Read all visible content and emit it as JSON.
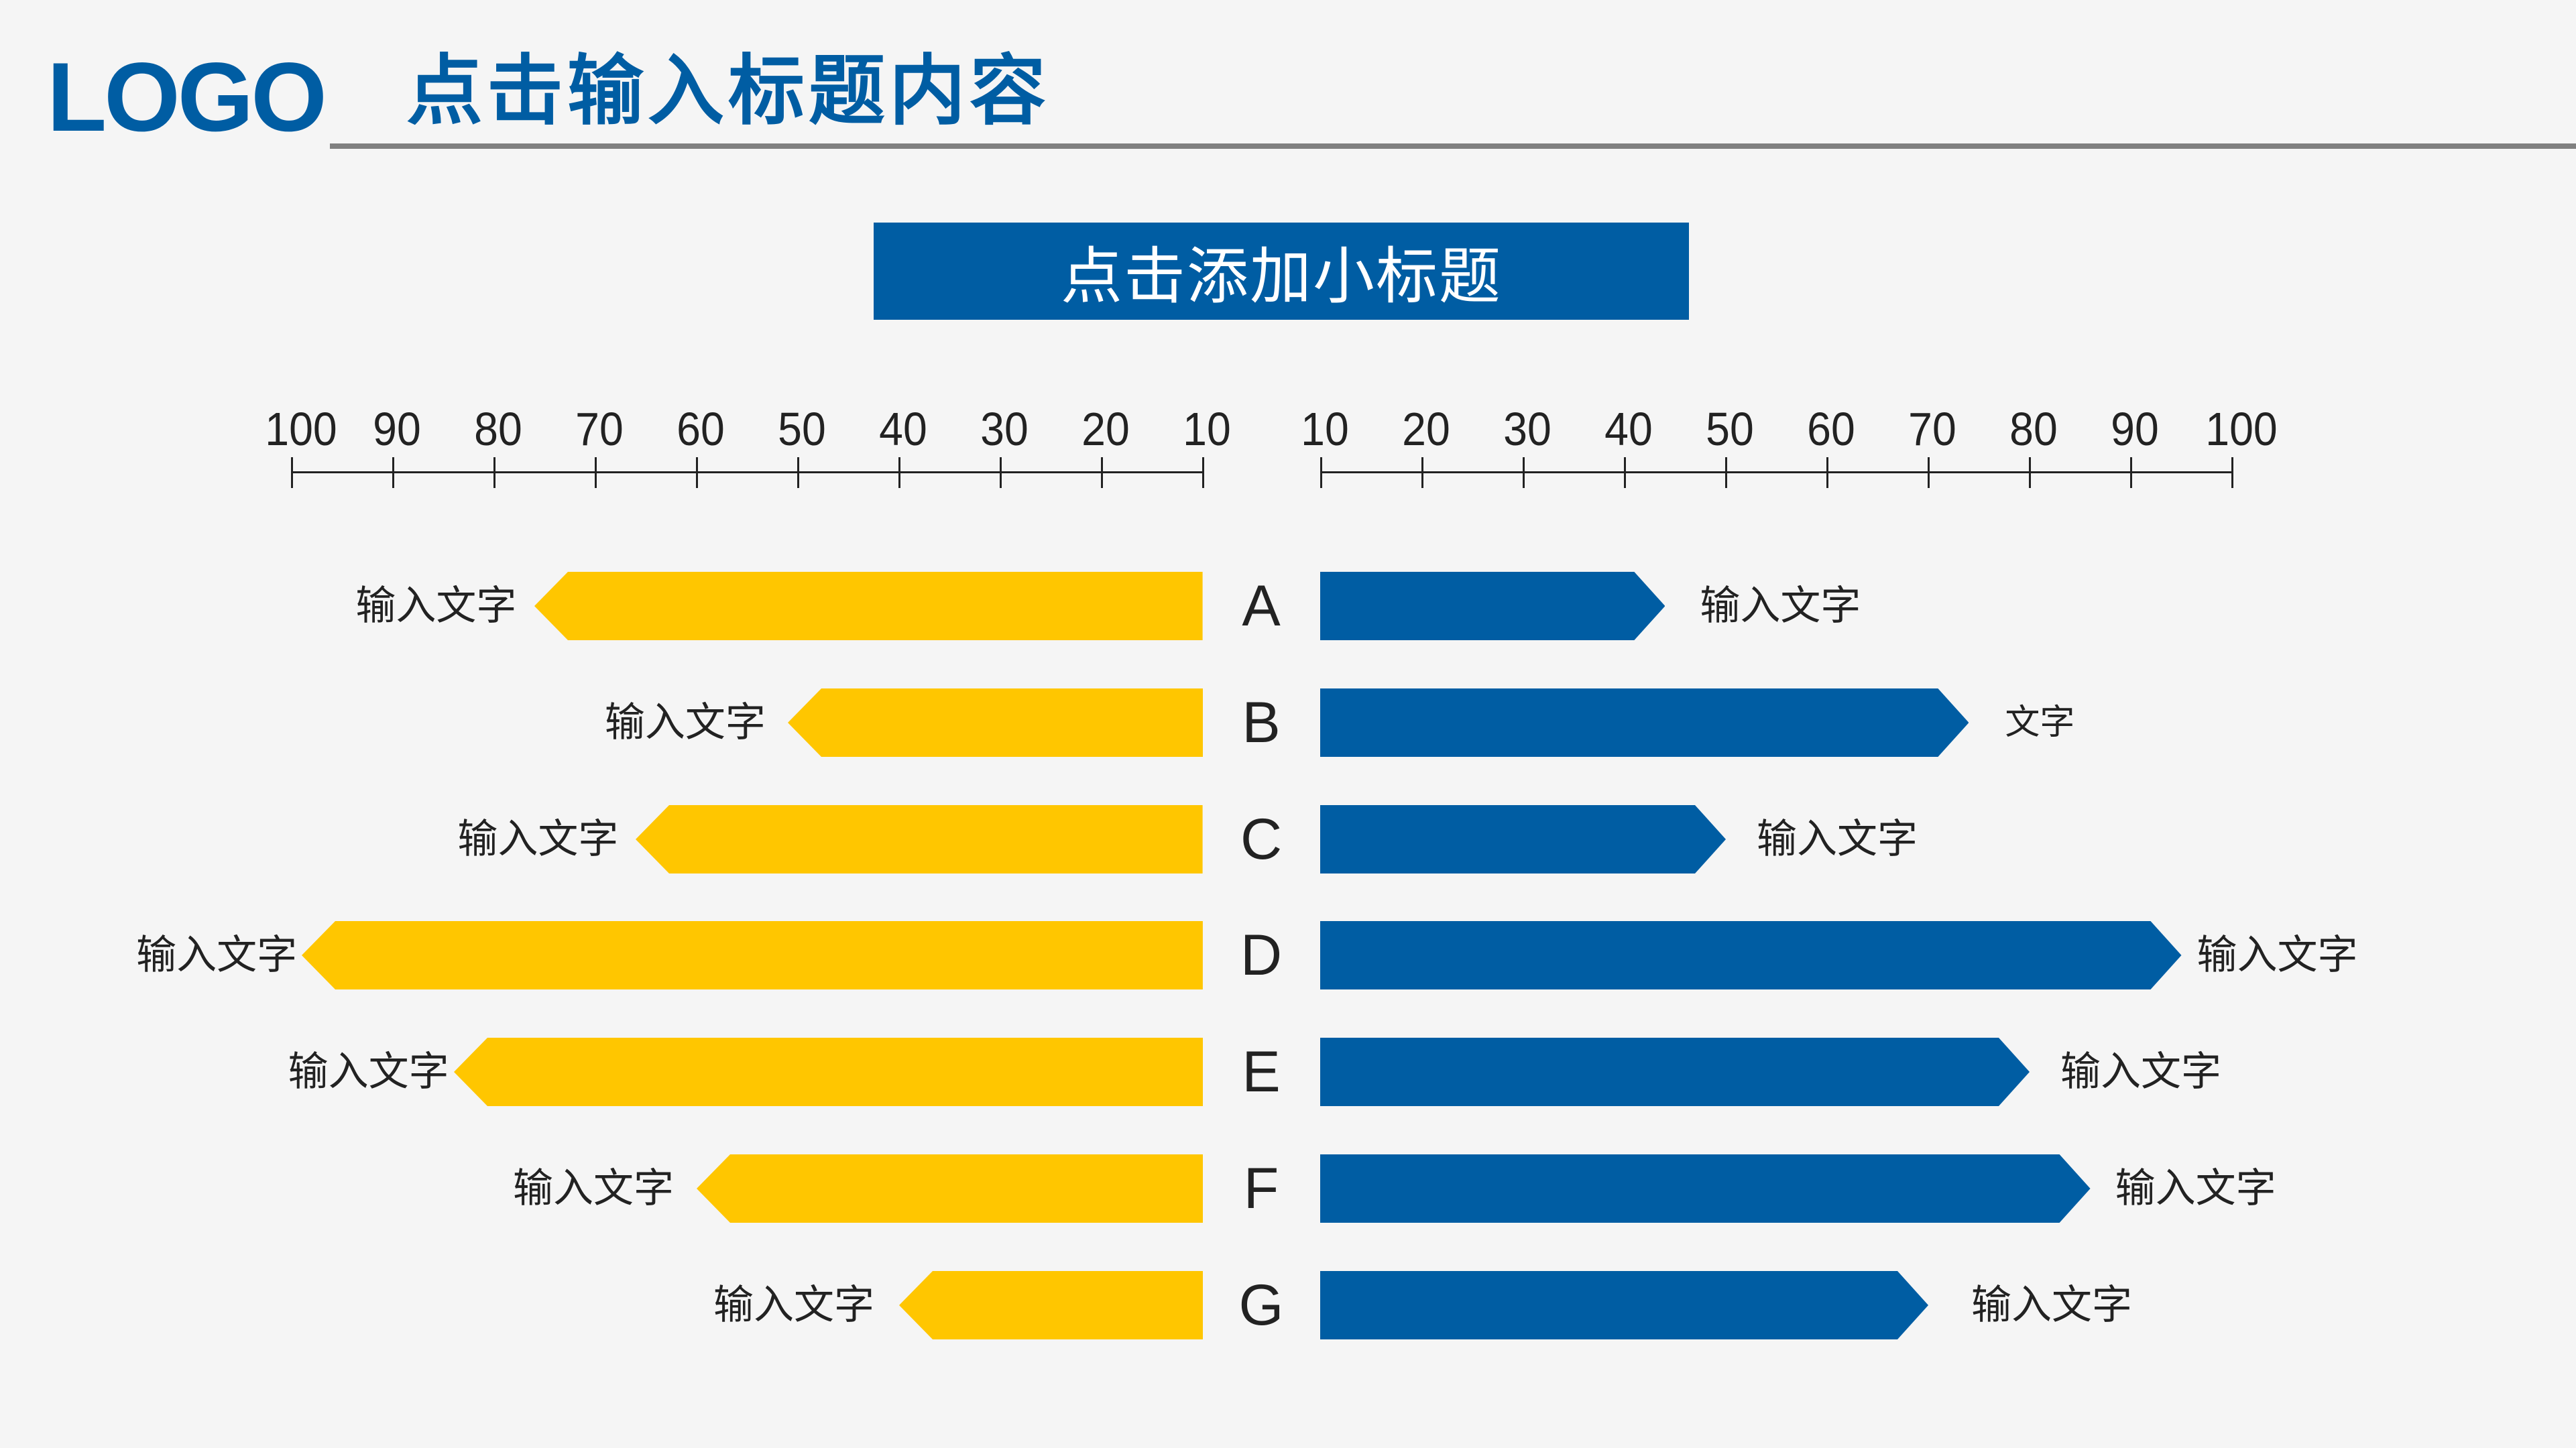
{
  "header": {
    "logo": "LOGO",
    "title": "点击输入标题内容"
  },
  "subtitle": "点击添加小标题",
  "colors": {
    "brand_blue": "#005DA3",
    "left_series": "#FFC600",
    "right_series": "#005DA3",
    "rule": "#808080",
    "background": "#F5F5F5",
    "text": "#222222"
  },
  "chart_data": {
    "type": "bar",
    "subtype": "butterfly (diverging horizontal arrow bars)",
    "title": "点击添加小标题",
    "categories": [
      "A",
      "B",
      "C",
      "D",
      "E",
      "F",
      "G"
    ],
    "series": [
      {
        "name": "left",
        "color": "#FFC600",
        "direction": "left",
        "values": [
          76,
          51,
          66,
          99,
          84,
          60,
          40
        ],
        "labels": [
          "输入文字",
          "输入文字",
          "输入文字",
          "输入文字",
          "输入文字",
          "输入文字",
          "输入文字"
        ]
      },
      {
        "name": "right",
        "color": "#005DA3",
        "direction": "right",
        "values": [
          44,
          74,
          50,
          95,
          80,
          86,
          70
        ],
        "labels": [
          "输入文字",
          "文字",
          "输入文字",
          "输入文字",
          "输入文字",
          "输入文字",
          "输入文字"
        ]
      }
    ],
    "left_axis": {
      "ticks": [
        "100",
        "90",
        "80",
        "70",
        "60",
        "50",
        "40",
        "30",
        "20",
        "10"
      ],
      "range": [
        100,
        10
      ]
    },
    "right_axis": {
      "ticks": [
        "10",
        "20",
        "30",
        "40",
        "50",
        "60",
        "70",
        "80",
        "90",
        "100"
      ],
      "range": [
        10,
        100
      ]
    },
    "xlabel": "",
    "ylabel": "",
    "grid": false,
    "legend": null
  }
}
